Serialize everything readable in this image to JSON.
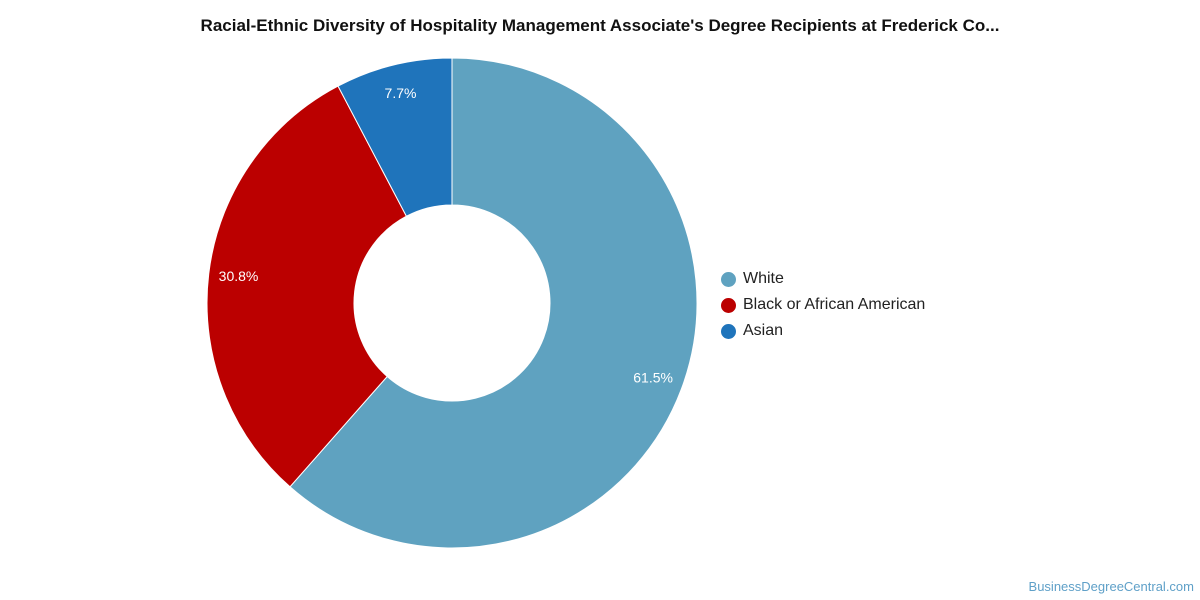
{
  "title": "Racial-Ethnic Diversity of Hospitality Management Associate's Degree Recipients at Frederick Co...",
  "chart_data": {
    "type": "pie",
    "donut": true,
    "title": "Racial-Ethnic Diversity of Hospitality Management Associate's Degree Recipients at Frederick Co...",
    "legend_position": "right",
    "categories": [
      "White",
      "Black or African American",
      "Asian"
    ],
    "values": [
      61.5,
      30.8,
      7.7
    ],
    "labels": [
      "61.5%",
      "30.8%",
      "7.7%"
    ],
    "colors": [
      "#5fa2c0",
      "#bb0000",
      "#1f74bb"
    ]
  },
  "watermark": "BusinessDegreeCentral.com"
}
